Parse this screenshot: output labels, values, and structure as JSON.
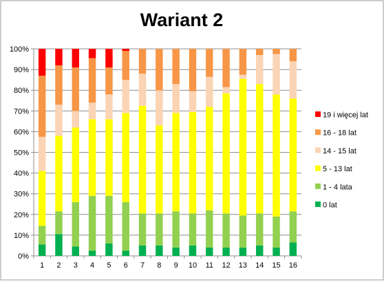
{
  "chart_data": {
    "type": "bar",
    "stacked": "percent",
    "title": "Wariant 2",
    "xlabel": "",
    "ylabel": "",
    "ylim": [
      0,
      100
    ],
    "yticks": [
      "0%",
      "10%",
      "20%",
      "30%",
      "40%",
      "50%",
      "60%",
      "70%",
      "80%",
      "90%",
      "100%"
    ],
    "grid": true,
    "legend_position": "right",
    "categories": [
      "1",
      "2",
      "3",
      "4",
      "5",
      "6",
      "7",
      "8",
      "9",
      "10",
      "11",
      "12",
      "13",
      "14",
      "15",
      "16"
    ],
    "series": [
      {
        "name": "0 lat",
        "color": "#00B050",
        "values": [
          5.5,
          10.5,
          4.5,
          2.5,
          6,
          2.5,
          5,
          5,
          4,
          5,
          4,
          4,
          4,
          5,
          4,
          6.5
        ]
      },
      {
        "name": "1 - 4 lata",
        "color": "#92D050",
        "values": [
          9,
          11,
          21.5,
          26.5,
          23,
          23.5,
          15.5,
          15.5,
          17.5,
          15.5,
          18,
          16.5,
          15.5,
          15.5,
          15,
          15
        ]
      },
      {
        "name": "5 - 13 lat",
        "color": "#FFFF00",
        "values": [
          26.5,
          36.5,
          36,
          37,
          37,
          43,
          52,
          42.5,
          47.5,
          49,
          50,
          58,
          66,
          62.5,
          59,
          54.5
        ]
      },
      {
        "name": "14 - 15 lat",
        "color": "#FAD4B4",
        "values": [
          16.5,
          15,
          8,
          8,
          12,
          16,
          15.5,
          17,
          14,
          10,
          14.5,
          3,
          2,
          14,
          19.5,
          18
        ]
      },
      {
        "name": "16 - 18 lat",
        "color": "#F79646",
        "values": [
          29.5,
          19,
          21,
          21.5,
          13,
          14,
          12,
          20,
          17,
          20.5,
          13.5,
          18.5,
          12.5,
          3,
          2.5,
          6
        ]
      },
      {
        "name": "19 i więcej lat",
        "color": "#FF0000",
        "values": [
          13,
          8,
          9,
          4.5,
          9,
          1,
          0,
          0,
          0,
          0,
          0,
          0,
          0,
          0,
          0,
          0
        ]
      }
    ]
  }
}
